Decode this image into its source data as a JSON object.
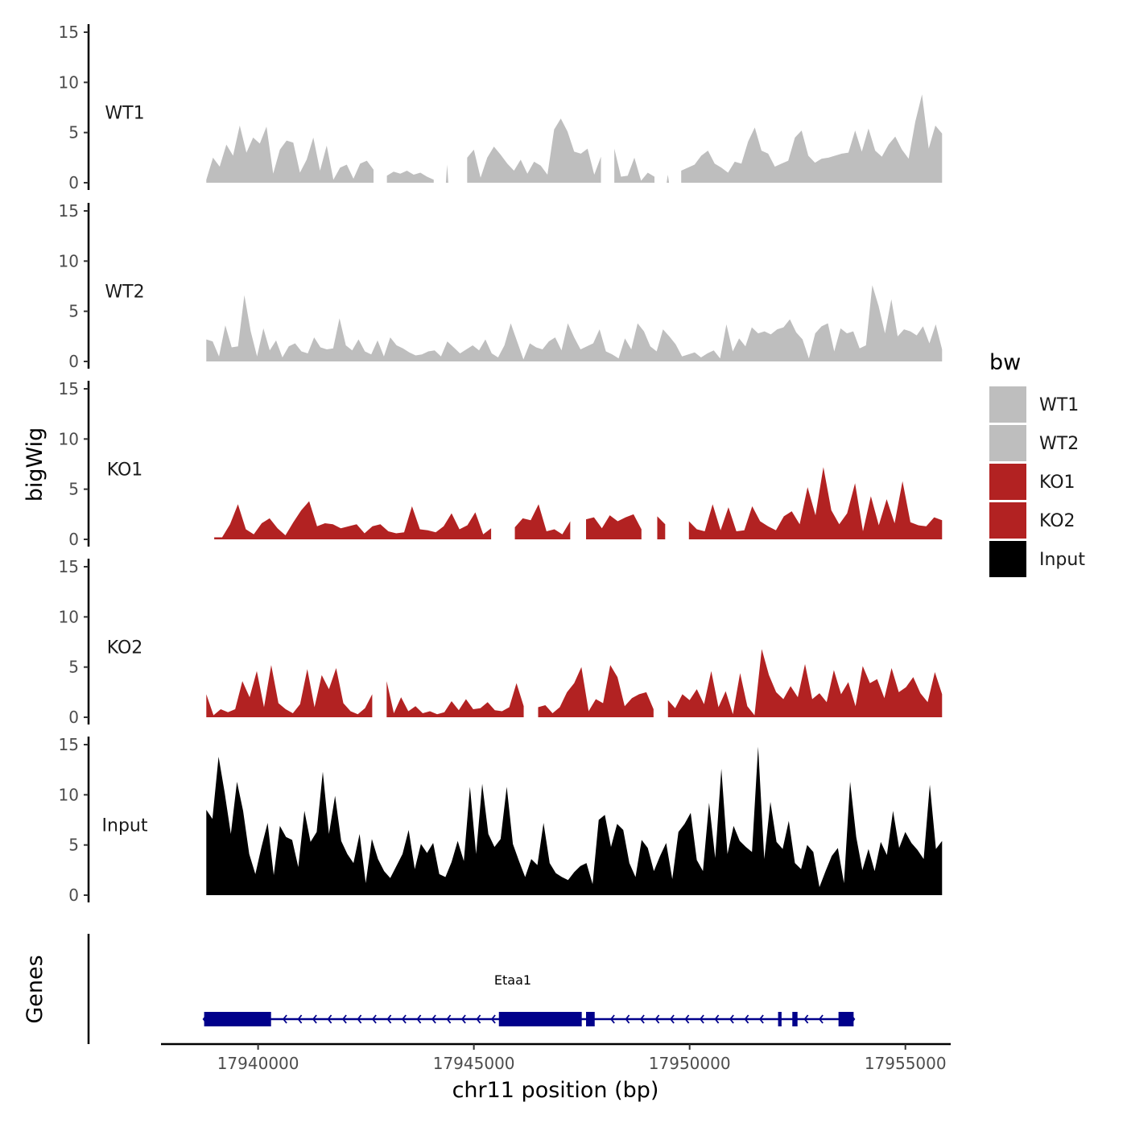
{
  "chart_data": {
    "type": "area",
    "ylabel_tracks": "bigWig",
    "ylabel_genes": "Genes",
    "xlabel": "chr11 position (bp)",
    "xlim": [
      17937750,
      17956050
    ],
    "ylim": [
      0,
      15
    ],
    "x_ticks": [
      17940000,
      17945000,
      17950000,
      17955000
    ],
    "x_tick_labels": [
      "17940000",
      "17945000",
      "17950000",
      "17955000"
    ],
    "y_ticks": [
      0,
      5,
      10,
      15
    ],
    "y_tick_labels": [
      "0",
      "5",
      "10",
      "15"
    ],
    "data_range": [
      17938800,
      17955850
    ],
    "legend": {
      "title": "bw",
      "position": "right",
      "entries": [
        {
          "label": "WT1",
          "color": "#bebebe"
        },
        {
          "label": "WT2",
          "color": "#bebebe"
        },
        {
          "label": "KO1",
          "color": "#b22222"
        },
        {
          "label": "KO2",
          "color": "#b22222"
        },
        {
          "label": "Input",
          "color": "#000000"
        }
      ]
    },
    "series": [
      {
        "name": "WT1",
        "color": "#bebebe",
        "values": [
          0.3,
          2.5,
          1.6,
          3.8,
          2.7,
          5.7,
          3.0,
          4.5,
          3.9,
          5.6,
          0.9,
          3.3,
          4.2,
          4.0,
          1.0,
          2.3,
          4.5,
          1.2,
          3.7,
          0.3,
          1.5,
          1.8,
          0.4,
          1.9,
          2.2,
          1.3,
          null,
          0.7,
          1.1,
          0.9,
          1.2,
          0.8,
          1.0,
          0.6,
          0.3,
          null,
          1.8,
          null,
          null,
          2.5,
          3.3,
          0.5,
          2.5,
          3.6,
          2.8,
          1.9,
          1.2,
          2.3,
          0.9,
          2.1,
          1.7,
          0.8,
          5.3,
          6.4,
          5.1,
          3.1,
          2.9,
          3.4,
          0.8,
          2.6,
          null,
          3.4,
          0.6,
          0.7,
          2.5,
          0.2,
          1.0,
          0.6,
          null,
          0.8,
          null,
          1.2,
          1.5,
          1.8,
          2.7,
          3.2,
          1.9,
          1.5,
          1.0,
          2.1,
          1.9,
          4.1,
          5.5,
          3.2,
          2.9,
          1.6,
          1.9,
          2.2,
          4.5,
          5.2,
          2.7,
          2.0,
          2.4,
          2.5,
          2.7,
          2.9,
          3.0,
          5.2,
          3.1,
          5.4,
          3.2,
          2.6,
          3.8,
          4.6,
          3.3,
          2.4,
          6.1,
          8.8,
          3.4,
          5.7,
          4.9
        ]
      },
      {
        "name": "WT2",
        "color": "#bebebe",
        "values": [
          2.2,
          2.0,
          0.5,
          3.6,
          1.4,
          1.5,
          6.6,
          3.0,
          0.5,
          3.3,
          1.1,
          2.1,
          0.4,
          1.5,
          1.8,
          1.0,
          0.8,
          2.4,
          1.4,
          1.2,
          1.3,
          4.3,
          1.6,
          1.1,
          2.2,
          1.0,
          0.7,
          2.1,
          0.5,
          2.4,
          1.6,
          1.3,
          0.9,
          0.6,
          0.7,
          1.0,
          1.1,
          0.5,
          2.0,
          1.4,
          0.8,
          1.2,
          1.6,
          1.1,
          2.2,
          0.8,
          0.4,
          1.6,
          3.8,
          2.0,
          0.2,
          1.8,
          1.4,
          1.2,
          2.0,
          2.4,
          1.1,
          3.8,
          2.4,
          1.2,
          1.5,
          1.8,
          3.2,
          1.0,
          0.7,
          0.3,
          2.3,
          1.2,
          3.8,
          3.0,
          1.5,
          1.0,
          3.2,
          2.5,
          1.7,
          0.5,
          0.7,
          0.9,
          0.4,
          0.8,
          1.1,
          0.3,
          3.7,
          1.0,
          2.3,
          1.5,
          3.4,
          2.8,
          3.0,
          2.7,
          3.2,
          3.4,
          4.2,
          2.9,
          2.2,
          0.3,
          2.8,
          3.5,
          3.8,
          1.0,
          3.3,
          2.8,
          3.0,
          1.3,
          1.6,
          7.6,
          5.5,
          2.8,
          6.2,
          2.5,
          3.2,
          3.0,
          2.6,
          3.5,
          1.8,
          3.7,
          1.2
        ]
      },
      {
        "name": "KO1",
        "color": "#b22222",
        "values": [
          null,
          0.2,
          0.2,
          1.5,
          3.5,
          1.0,
          0.5,
          1.6,
          2.1,
          1.1,
          0.4,
          1.7,
          2.9,
          3.8,
          1.3,
          1.6,
          1.5,
          1.1,
          1.3,
          1.5,
          0.6,
          1.3,
          1.5,
          0.8,
          0.6,
          0.7,
          3.3,
          1.0,
          0.9,
          0.7,
          1.3,
          2.6,
          1.0,
          1.4,
          2.7,
          0.5,
          1.1,
          null,
          null,
          1.2,
          2.1,
          1.9,
          3.5,
          0.8,
          1.0,
          0.5,
          1.8,
          null,
          2.0,
          2.2,
          1.1,
          2.4,
          1.8,
          2.2,
          2.5,
          1.0,
          null,
          2.3,
          1.5,
          null,
          null,
          1.8,
          1.0,
          0.8,
          3.5,
          0.9,
          3.2,
          0.8,
          0.9,
          3.3,
          1.8,
          1.3,
          0.9,
          2.3,
          2.8,
          1.5,
          5.2,
          2.4,
          7.2,
          2.9,
          1.5,
          2.6,
          5.6,
          0.8,
          4.3,
          1.4,
          4.0,
          1.6,
          5.8,
          1.7,
          1.4,
          1.3,
          2.2,
          1.9
        ]
      },
      {
        "name": "KO2",
        "color": "#b22222",
        "values": [
          2.3,
          0.2,
          0.8,
          0.5,
          0.8,
          3.6,
          2.0,
          4.6,
          1.0,
          5.2,
          1.4,
          0.8,
          0.4,
          1.3,
          4.8,
          1.0,
          4.2,
          2.8,
          4.9,
          1.4,
          0.6,
          0.3,
          0.9,
          2.3,
          null,
          3.6,
          0.4,
          2.0,
          0.6,
          1.1,
          0.4,
          0.6,
          0.3,
          0.5,
          1.6,
          0.7,
          1.8,
          0.8,
          0.9,
          1.5,
          0.7,
          0.6,
          1.0,
          3.4,
          1.1,
          null,
          1.0,
          1.2,
          0.4,
          1.0,
          2.5,
          3.4,
          5.0,
          0.6,
          1.8,
          1.4,
          5.2,
          4.0,
          1.1,
          1.9,
          2.3,
          2.5,
          0.8,
          null,
          1.7,
          0.9,
          2.3,
          1.7,
          2.8,
          1.3,
          4.6,
          1.0,
          2.6,
          0.3,
          4.4,
          1.1,
          0.2,
          6.8,
          4.2,
          2.5,
          1.8,
          3.1,
          2.0,
          5.3,
          1.8,
          2.4,
          1.5,
          4.7,
          2.3,
          3.5,
          1.1,
          5.1,
          3.4,
          3.8,
          1.9,
          4.9,
          2.5,
          3.0,
          4.0,
          2.4,
          1.5,
          4.5,
          2.3
        ]
      },
      {
        "name": "Input",
        "color": "#000000",
        "values": [
          8.5,
          7.6,
          13.8,
          10.2,
          6.1,
          11.3,
          8.4,
          4.1,
          2.1,
          4.8,
          7.2,
          2.0,
          6.9,
          5.8,
          5.5,
          2.8,
          8.4,
          5.3,
          6.3,
          12.3,
          6.1,
          9.9,
          5.4,
          4.1,
          3.2,
          6.1,
          1.2,
          5.6,
          3.6,
          2.4,
          1.7,
          2.9,
          4.1,
          6.5,
          2.6,
          5.1,
          4.2,
          5.2,
          2.1,
          1.8,
          3.3,
          5.4,
          3.4,
          10.8,
          4.1,
          11.1,
          6.1,
          4.8,
          5.6,
          10.8,
          5.1,
          3.4,
          1.8,
          3.6,
          3.0,
          7.2,
          3.2,
          2.2,
          1.8,
          1.5,
          2.3,
          2.9,
          3.2,
          1.1,
          7.5,
          8.0,
          4.8,
          7.1,
          6.5,
          3.2,
          1.8,
          5.5,
          4.7,
          2.4,
          3.9,
          5.2,
          1.6,
          6.3,
          7.1,
          8.2,
          3.5,
          2.4,
          9.2,
          3.7,
          12.6,
          4.1,
          6.9,
          5.4,
          4.8,
          4.3,
          14.8,
          3.6,
          9.3,
          5.3,
          4.6,
          7.4,
          3.2,
          2.6,
          5.0,
          4.3,
          0.8,
          2.4,
          3.9,
          4.7,
          1.2,
          11.3,
          5.8,
          2.5,
          4.6,
          2.4,
          5.3,
          4.0,
          8.4,
          4.7,
          6.3,
          5.2,
          4.5,
          3.6,
          11.0,
          4.6,
          5.4
        ]
      }
    ],
    "genes": [
      {
        "name": "Etaa1",
        "strand": "-",
        "start": 17938750,
        "end": 17953800,
        "exons": [
          [
            17938750,
            17940300
          ],
          [
            17945580,
            17947500
          ],
          [
            17947600,
            17947800
          ],
          [
            17952050,
            17952130
          ],
          [
            17952380,
            17952500
          ],
          [
            17953450,
            17953800
          ]
        ]
      }
    ]
  }
}
